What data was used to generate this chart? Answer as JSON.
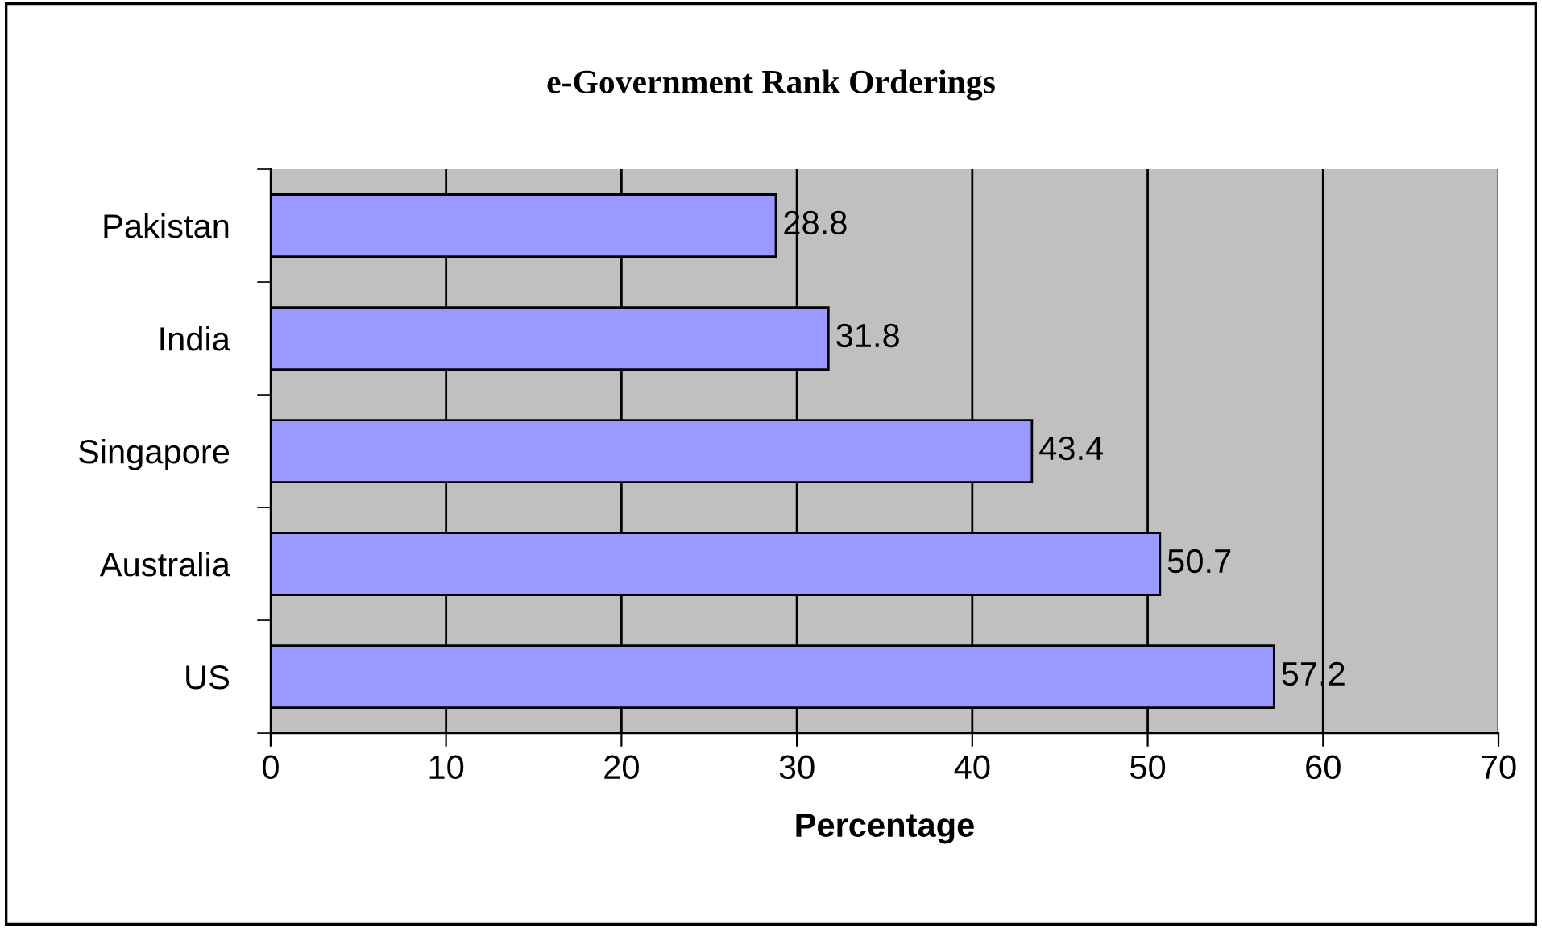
{
  "chart_data": {
    "type": "bar",
    "orientation": "horizontal",
    "title": "e-Government Rank Orderings",
    "xlabel": "Percentage",
    "categories": [
      "Pakistan",
      "India",
      "Singapore",
      "Australia",
      "US"
    ],
    "values": [
      28.8,
      31.8,
      43.4,
      50.7,
      57.2
    ],
    "color": "#9999ff",
    "xlim": [
      0,
      70
    ],
    "xticks": [
      0,
      10,
      20,
      30,
      40,
      50,
      60,
      70
    ],
    "grid": "x",
    "data_labels": true
  }
}
